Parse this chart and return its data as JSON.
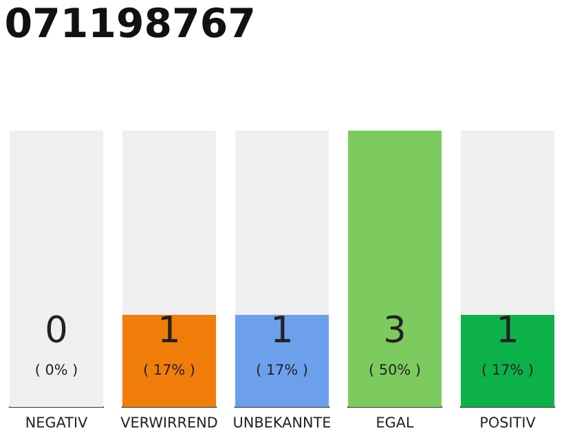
{
  "chart_data": {
    "type": "bar",
    "title": "071198767",
    "categories": [
      "NEGATIV",
      "VERWIRREND",
      "UNBEKANNTE",
      "EGAL",
      "POSITIV"
    ],
    "stacked": true,
    "series": [
      {
        "colors": [
          "#e8362f",
          "#f07d0a",
          "#6ca0ed",
          "#7dcb5f",
          "#0cb14a"
        ],
        "values": [
          0,
          1,
          1,
          3,
          1
        ],
        "value_labels": [
          null,
          "1",
          "1",
          "3",
          "1"
        ]
      },
      {
        "color": "#efefef",
        "values": [
          3,
          2,
          2,
          0,
          2
        ],
        "value_labels": [
          null,
          null,
          null,
          null,
          null
        ]
      }
    ],
    "legend": false,
    "annotations": [
      {
        "text": "0",
        "x": "NEGATIV",
        "y": 0
      },
      {
        "text": "( 0% )",
        "x": "NEGATIV",
        "y": 0
      },
      {
        "text": "( 17% )",
        "x": "VERWIRREND",
        "y": 0
      },
      {
        "text": "( 17% )",
        "x": "UNBEKANNTE",
        "y": 0
      },
      {
        "text": "( 50% )",
        "x": "EGAL",
        "y": 0
      },
      {
        "text": "( 17% )",
        "x": "POSITIV",
        "y": 0
      }
    ]
  }
}
